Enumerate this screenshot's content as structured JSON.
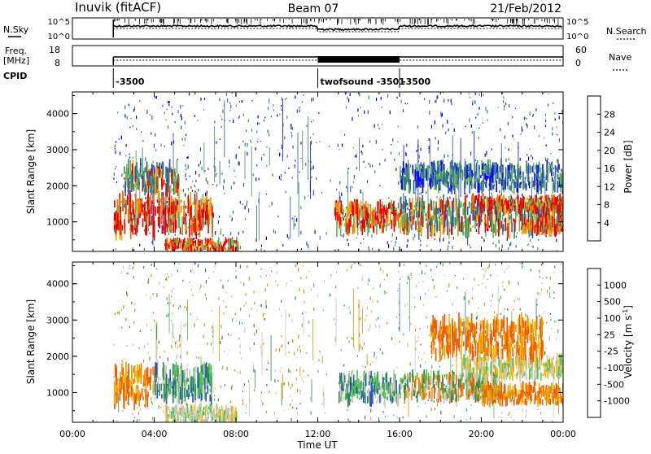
{
  "header": {
    "station": "Inuvik (fitACF)",
    "beam": "Beam 07",
    "date": "21/Feb/2012"
  },
  "noise_panel": {
    "left_label": "N.Sky",
    "right_label": "N.Search",
    "left_ticks": [
      "10^5",
      "10^0"
    ],
    "right_ticks": [
      "10^5",
      "10^0"
    ]
  },
  "freq_panel": {
    "left_label_line1": "Freq.",
    "left_label_line2": "[MHz]",
    "right_label": "Nave",
    "left_ticks": [
      "18",
      "8"
    ],
    "right_ticks": [
      "60",
      "0"
    ]
  },
  "cpid": {
    "label": "CPID",
    "segments": [
      {
        "text": "-3500",
        "start_hour": 2.0
      },
      {
        "text": "twofsound -3501",
        "start_hour": 12.0
      },
      {
        "text": "-3500",
        "start_hour": 16.0
      }
    ]
  },
  "chart_data": [
    {
      "type": "heatmap",
      "name": "power",
      "ylabel": "Slant Range [km]",
      "yticks": [
        "1000",
        "2000",
        "3000",
        "4000"
      ],
      "ylim": [
        180,
        4600
      ],
      "xlim": [
        0,
        24
      ],
      "colorbar": {
        "label": "Power [dB]",
        "ticks": [
          "28",
          "24",
          "20",
          "16",
          "12",
          "8",
          "4"
        ],
        "colors": [
          "#0000ff",
          "#2a55b4",
          "#3f8a5a",
          "#5db55d",
          "#e6c800",
          "#f0a000",
          "#f07000",
          "#e60000"
        ]
      },
      "echo_regions": [
        {
          "x0": 2.0,
          "x1": 6.9,
          "y0": 700,
          "y1": 1700,
          "level": "high"
        },
        {
          "x0": 4.5,
          "x1": 8.1,
          "y0": 180,
          "y1": 500,
          "level": "high"
        },
        {
          "x0": 2.5,
          "x1": 5.2,
          "y0": 1800,
          "y1": 2600,
          "level": "mid"
        },
        {
          "x0": 12.8,
          "x1": 16.0,
          "y0": 750,
          "y1": 1500,
          "level": "high"
        },
        {
          "x0": 16.0,
          "x1": 24.0,
          "y0": 700,
          "y1": 1600,
          "level": "mid"
        },
        {
          "x0": 16.0,
          "x1": 24.0,
          "y0": 1900,
          "y1": 2600,
          "level": "low"
        },
        {
          "x0": 19.5,
          "x1": 24.0,
          "y0": 1300,
          "y1": 1700,
          "level": "high"
        },
        {
          "x0": 22.0,
          "x1": 24.0,
          "y0": 700,
          "y1": 1100,
          "level": "high"
        }
      ]
    },
    {
      "type": "heatmap",
      "name": "velocity",
      "ylabel": "Slant Range [km]",
      "yticks": [
        "1000",
        "2000",
        "3000",
        "4000"
      ],
      "ylim": [
        180,
        4600
      ],
      "xlim": [
        0,
        24
      ],
      "xticks": [
        "00:00",
        "04:00",
        "08:00",
        "12:00",
        "16:00",
        "20:00",
        "00:00"
      ],
      "xlabel": "Time UT",
      "colorbar": {
        "label": "Velocity [m s^-1]",
        "ticks": [
          "1000",
          "500",
          "100",
          "25",
          "-25",
          "-100",
          "-500",
          "-1000"
        ],
        "colors": [
          "#e00000",
          "#f05a00",
          "#f08c00",
          "#f0b400",
          "#c8c8b4",
          "#50c050",
          "#2a8a5a",
          "#2a55b4",
          "#2a3c96"
        ]
      },
      "echo_regions": [
        {
          "x0": 2.0,
          "x1": 4.0,
          "y0": 700,
          "y1": 1700,
          "level": "negative"
        },
        {
          "x0": 4.0,
          "x1": 6.8,
          "y0": 800,
          "y1": 1700,
          "level": "positive"
        },
        {
          "x0": 4.5,
          "x1": 8.0,
          "y0": 180,
          "y1": 600,
          "level": "near-zero"
        },
        {
          "x0": 13.0,
          "x1": 16.0,
          "y0": 750,
          "y1": 1500,
          "level": "positive"
        },
        {
          "x0": 16.0,
          "x1": 21.0,
          "y0": 800,
          "y1": 1500,
          "level": "mixed"
        },
        {
          "x0": 19.0,
          "x1": 24.0,
          "y0": 1400,
          "y1": 2000,
          "level": "near-zero"
        },
        {
          "x0": 20.0,
          "x1": 24.0,
          "y0": 700,
          "y1": 1200,
          "level": "negative"
        },
        {
          "x0": 17.5,
          "x1": 23.0,
          "y0": 2000,
          "y1": 3000,
          "level": "negative"
        }
      ]
    }
  ]
}
